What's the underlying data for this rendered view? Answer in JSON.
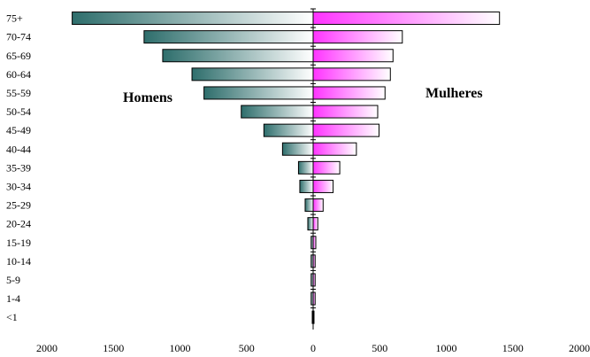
{
  "chart_data": {
    "type": "bar",
    "orientation": "horizontal",
    "title": "",
    "xlabel": "",
    "ylabel": "",
    "xlim": [
      -2000,
      2000
    ],
    "x_ticks": [
      -2000,
      -1500,
      -1000,
      -500,
      0,
      500,
      1000,
      1500,
      2000
    ],
    "x_tick_labels": [
      "2000",
      "1500",
      "1000",
      "500",
      "0",
      "500",
      "1000",
      "1500",
      "2000"
    ],
    "categories": [
      "75+",
      "70-74",
      "65-69",
      "60-64",
      "55-59",
      "50-54",
      "45-49",
      "40-44",
      "35-39",
      "30-34",
      "25-29",
      "20-24",
      "15-19",
      "10-14",
      "5-9",
      "1-4",
      "<1"
    ],
    "series": [
      {
        "name": "Homens",
        "side": "left",
        "color": "#2e6e6c",
        "values": [
          1810,
          1270,
          1130,
          910,
          820,
          540,
          370,
          230,
          110,
          100,
          60,
          40,
          15,
          15,
          15,
          15,
          5
        ]
      },
      {
        "name": "Mulheres",
        "side": "right",
        "color": "#ff33ff",
        "values": [
          1400,
          670,
          600,
          580,
          540,
          485,
          495,
          325,
          200,
          150,
          75,
          35,
          20,
          15,
          15,
          15,
          5
        ]
      }
    ],
    "grid": false,
    "legend": "inline"
  }
}
